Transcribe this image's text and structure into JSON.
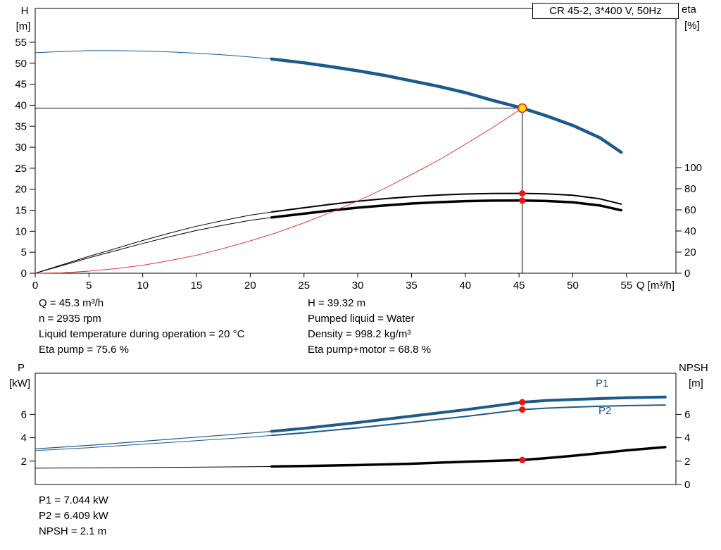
{
  "header": {
    "title": "CR 45-2, 3*400 V, 50Hz"
  },
  "colors": {
    "curve_blue": "#1c5a8c",
    "curve_black": "#000000",
    "curve_red": "#e02020",
    "dot_red": "#ee1111",
    "duty_fill": "#ffe200",
    "axis": "#000000"
  },
  "annotations": {
    "mid_left": [
      "Q = 45.3 m³/h",
      "n = 2935 rpm",
      "Liquid temperature during operation = 20 °C",
      "Eta pump = 75.6 %"
    ],
    "mid_right": [
      "H = 39.32 m",
      "Pumped liquid = Water",
      "Density = 998.2 kg/m³",
      "Eta pump+motor = 68.8 %"
    ],
    "bottom": [
      "P1 = 7.044 kW",
      "P2 = 6.409 kW",
      "NPSH = 2.1 m"
    ]
  },
  "chart_data": [
    {
      "type": "line",
      "title": "CR 45-2, 3*400 V, 50Hz",
      "x_axis": {
        "label": "Q [m³/h]",
        "min": 0,
        "max": 59.6,
        "ticks": [
          0,
          5,
          10,
          15,
          20,
          25,
          30,
          35,
          40,
          45,
          50,
          55
        ]
      },
      "y_left": {
        "name": "H",
        "unit": "[m]",
        "min": 0,
        "max": 63,
        "ticks": [
          0,
          5,
          10,
          15,
          20,
          25,
          30,
          35,
          40,
          45,
          50,
          55
        ]
      },
      "y_right": {
        "name": "eta",
        "unit": "[%]",
        "min": 0,
        "max": 100,
        "ticks": [
          0,
          20,
          40,
          60,
          80,
          100
        ]
      },
      "grid": false,
      "series": [
        {
          "name": "head",
          "axis": "left",
          "color": "#1c5a8c",
          "thick_from": 22,
          "points": [
            [
              0,
              52.5
            ],
            [
              2.5,
              52.8
            ],
            [
              5,
              53.0
            ],
            [
              7.5,
              53.0
            ],
            [
              10,
              52.9
            ],
            [
              12.5,
              52.7
            ],
            [
              15,
              52.4
            ],
            [
              17.5,
              52.0
            ],
            [
              20,
              51.5
            ],
            [
              22,
              51.0
            ],
            [
              25,
              50.1
            ],
            [
              27.5,
              49.2
            ],
            [
              30,
              48.2
            ],
            [
              32.5,
              47.1
            ],
            [
              35,
              45.8
            ],
            [
              37.5,
              44.5
            ],
            [
              40,
              43.0
            ],
            [
              42.5,
              41.2
            ],
            [
              45.3,
              39.32
            ],
            [
              47.5,
              37.5
            ],
            [
              50,
              35.2
            ],
            [
              52.5,
              32.3
            ],
            [
              54.5,
              28.8
            ]
          ]
        },
        {
          "name": "eta-pump",
          "axis": "right",
          "color": "#000000",
          "thick_from": 22,
          "points": [
            [
              0,
              0
            ],
            [
              2.5,
              8
            ],
            [
              5,
              16
            ],
            [
              7.5,
              23.5
            ],
            [
              10,
              31
            ],
            [
              12.5,
              38
            ],
            [
              15,
              44.5
            ],
            [
              17.5,
              50
            ],
            [
              20,
              55
            ],
            [
              22,
              58
            ],
            [
              25,
              62
            ],
            [
              27.5,
              65.3
            ],
            [
              30,
              68.2
            ],
            [
              32.5,
              70.6
            ],
            [
              35,
              72.5
            ],
            [
              37.5,
              74.0
            ],
            [
              40,
              75.0
            ],
            [
              42.5,
              75.5
            ],
            [
              45.3,
              75.6
            ],
            [
              47.5,
              75.2
            ],
            [
              50,
              73.8
            ],
            [
              52.5,
              70.5
            ],
            [
              54.5,
              65.5
            ]
          ]
        },
        {
          "name": "eta-pump-motor",
          "axis": "right",
          "color": "#000000",
          "thick_from": 22,
          "points": [
            [
              0,
              0
            ],
            [
              2.5,
              7.3
            ],
            [
              5,
              14.6
            ],
            [
              7.5,
              21.4
            ],
            [
              10,
              28.2
            ],
            [
              12.5,
              34.6
            ],
            [
              15,
              40.5
            ],
            [
              17.5,
              45.5
            ],
            [
              20,
              50.1
            ],
            [
              22,
              52.8
            ],
            [
              25,
              56.4
            ],
            [
              27.5,
              59.4
            ],
            [
              30,
              62.1
            ],
            [
              32.5,
              64.2
            ],
            [
              35,
              66.0
            ],
            [
              37.5,
              67.3
            ],
            [
              40,
              68.3
            ],
            [
              42.5,
              68.7
            ],
            [
              45.3,
              68.8
            ],
            [
              47.5,
              68.4
            ],
            [
              50,
              67.2
            ],
            [
              52.5,
              64.2
            ],
            [
              54.5,
              59.6
            ]
          ]
        },
        {
          "name": "system-curve",
          "axis": "left",
          "color": "#e02020",
          "points": [
            [
              0,
              0
            ],
            [
              2.5,
              0.1
            ],
            [
              5,
              0.5
            ],
            [
              7.5,
              1.1
            ],
            [
              10,
              1.9
            ],
            [
              12.5,
              3.0
            ],
            [
              15,
              4.3
            ],
            [
              17.5,
              5.9
            ],
            [
              20,
              7.7
            ],
            [
              22.5,
              9.7
            ],
            [
              25,
              12.0
            ],
            [
              27.5,
              14.5
            ],
            [
              30,
              17.2
            ],
            [
              32.5,
              20.2
            ],
            [
              35,
              23.5
            ],
            [
              37.5,
              26.9
            ],
            [
              40,
              30.7
            ],
            [
              42.5,
              34.6
            ],
            [
              45.3,
              39.32
            ]
          ]
        }
      ],
      "duty_point": {
        "q": 45.3,
        "h": 39.32
      },
      "markers": [
        {
          "series": "eta-pump",
          "q": 45.3,
          "v": 75.6
        },
        {
          "series": "eta-pump-motor",
          "q": 45.3,
          "v": 68.8
        }
      ],
      "ref_lines": {
        "h": 39.32,
        "q": 45.3
      }
    },
    {
      "type": "line",
      "x_axis": {
        "label": "",
        "min": 0,
        "max": 59.6,
        "ticks": []
      },
      "y_left": {
        "name": "P",
        "unit": "[kW]",
        "min": 0,
        "max": 9.5,
        "ticks": [
          2,
          4,
          6
        ]
      },
      "y_right": {
        "name": "NPSH",
        "unit": "[m]",
        "min": 0,
        "max": 9.5,
        "ticks": [
          0,
          2,
          4,
          6
        ]
      },
      "grid": false,
      "series": [
        {
          "name": "P1",
          "label": "P1",
          "axis": "left",
          "color": "#1c5a8c",
          "thick_from": 22,
          "points": [
            [
              0,
              3.05
            ],
            [
              5,
              3.35
            ],
            [
              10,
              3.7
            ],
            [
              15,
              4.05
            ],
            [
              20,
              4.4
            ],
            [
              22,
              4.55
            ],
            [
              25,
              4.8
            ],
            [
              30,
              5.3
            ],
            [
              35,
              5.85
            ],
            [
              40,
              6.4
            ],
            [
              42.5,
              6.7
            ],
            [
              45.3,
              7.044
            ],
            [
              47.5,
              7.18
            ],
            [
              50,
              7.28
            ],
            [
              52.5,
              7.35
            ],
            [
              55,
              7.42
            ],
            [
              58.6,
              7.48
            ]
          ]
        },
        {
          "name": "P2",
          "label": "P2",
          "axis": "left",
          "color": "#1c5a8c",
          "thick_from": 22,
          "points": [
            [
              0,
              2.9
            ],
            [
              5,
              3.15
            ],
            [
              10,
              3.45
            ],
            [
              15,
              3.75
            ],
            [
              20,
              4.05
            ],
            [
              22,
              4.2
            ],
            [
              25,
              4.42
            ],
            [
              30,
              4.85
            ],
            [
              35,
              5.32
            ],
            [
              40,
              5.82
            ],
            [
              42.5,
              6.1
            ],
            [
              45.3,
              6.409
            ],
            [
              47.5,
              6.53
            ],
            [
              50,
              6.62
            ],
            [
              52.5,
              6.69
            ],
            [
              55,
              6.75
            ],
            [
              58.6,
              6.8
            ]
          ]
        },
        {
          "name": "NPSH",
          "axis": "right",
          "color": "#000000",
          "thick_from": 22,
          "points": [
            [
              0,
              1.4
            ],
            [
              5,
              1.42
            ],
            [
              10,
              1.45
            ],
            [
              15,
              1.48
            ],
            [
              20,
              1.52
            ],
            [
              22,
              1.54
            ],
            [
              25,
              1.58
            ],
            [
              30,
              1.66
            ],
            [
              35,
              1.78
            ],
            [
              40,
              1.95
            ],
            [
              42.5,
              2.02
            ],
            [
              45.3,
              2.1
            ],
            [
              47.5,
              2.25
            ],
            [
              50,
              2.45
            ],
            [
              52.5,
              2.68
            ],
            [
              55,
              2.92
            ],
            [
              58.6,
              3.2
            ]
          ]
        }
      ],
      "markers": [
        {
          "series": "P1",
          "q": 45.3,
          "v": 7.044
        },
        {
          "series": "P2",
          "q": 45.3,
          "v": 6.409
        },
        {
          "series": "NPSH",
          "q": 45.3,
          "v": 2.1
        }
      ]
    }
  ]
}
